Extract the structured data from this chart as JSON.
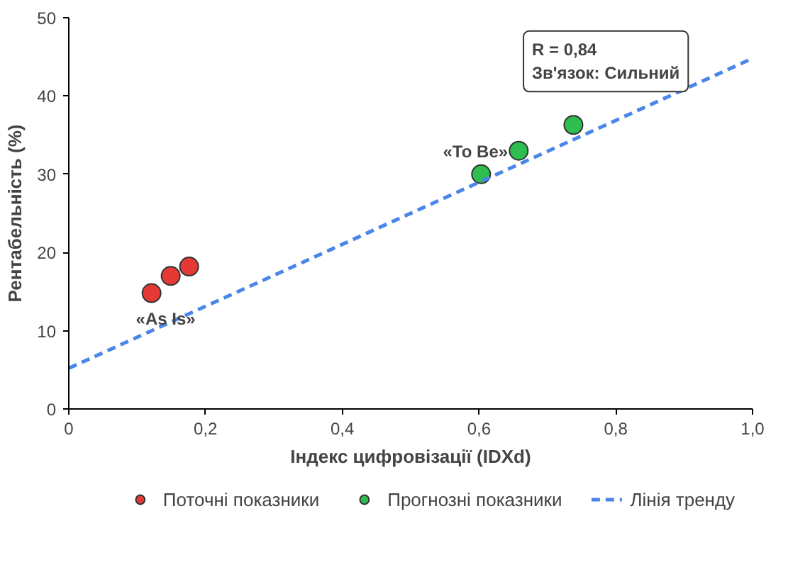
{
  "chart_data": {
    "type": "scatter",
    "xlabel": "Індекс цифровізації (IDXd)",
    "ylabel": "Рентабельність (%)",
    "xlim": [
      0,
      1
    ],
    "ylim": [
      0,
      50
    ],
    "xticks": [
      0,
      {
        "value": 0.2,
        "label": "0,2"
      },
      {
        "value": 0.4,
        "label": "0,4"
      },
      {
        "value": 0.6,
        "label": "0,6"
      },
      {
        "value": 0.8,
        "label": "0,8"
      },
      {
        "value": 1,
        "label": "1,0"
      }
    ],
    "yticks": [
      0,
      10,
      20,
      30,
      40,
      50
    ],
    "grid": false,
    "legend": "bottom",
    "series": [
      {
        "name": "Поточні показники",
        "color": "#e53935",
        "marker": "circle",
        "x": [
          0.121,
          0.149,
          0.176
        ],
        "values": [
          14.8,
          17.0,
          18.2
        ]
      },
      {
        "name": "Прогнозні показники",
        "color": "#2ebd4e",
        "marker": "circle",
        "x": [
          0.603,
          0.658,
          0.738
        ],
        "values": [
          30.0,
          33.0,
          36.3
        ]
      },
      {
        "name": "Лінія тренду",
        "type": "line",
        "line_style": "dashed",
        "color": "#4a86e8",
        "x": [
          0,
          1
        ],
        "values": [
          5.2,
          44.8
        ]
      }
    ],
    "annotations": [
      "R = 0,84",
      "Зв'язок: Сильний",
      {
        "text": "«As Is»",
        "x": 0.121,
        "y": 14.8
      },
      {
        "text": "«To Be»",
        "x": 0.603,
        "y": 30.0
      }
    ]
  }
}
